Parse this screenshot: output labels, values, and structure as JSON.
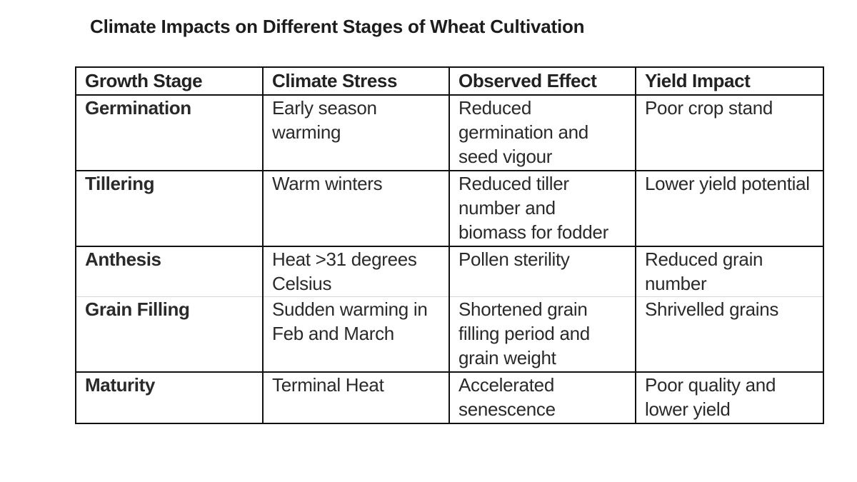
{
  "title": "Climate Impacts on Different Stages of Wheat Cultivation",
  "table": {
    "headers": [
      "Growth Stage",
      "Climate Stress",
      "Observed Effect",
      "Yield Impact"
    ],
    "rows": [
      {
        "stage": "Germination",
        "stress": "Early season warming",
        "effect": "Reduced germination and seed vigour",
        "yield": "Poor crop stand"
      },
      {
        "stage": "Tillering",
        "stress": "Warm winters",
        "effect": "Reduced tiller number and biomass for fodder",
        "yield": "Lower yield potential"
      },
      {
        "stage": "Anthesis",
        "stress": "Heat >31 degrees Celsius",
        "effect": "Pollen sterility",
        "yield": "Reduced grain number"
      },
      {
        "stage": "Grain Filling",
        "stress": "Sudden warming in Feb and March",
        "effect": "Shortened grain filling period and grain weight",
        "yield": "Shrivelled grains"
      },
      {
        "stage": "Maturity",
        "stress": "Terminal Heat",
        "effect": "Accelerated senescence",
        "yield": "Poor quality and lower yield"
      }
    ]
  }
}
